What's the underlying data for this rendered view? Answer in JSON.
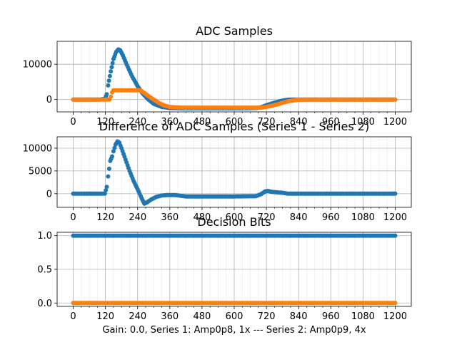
{
  "caption": "Gain: 0.0, Series 1: Amp0p8, 1x --- Series 2: Amp0p9, 4x",
  "chart_data": [
    {
      "type": "scatter",
      "title": "ADC Samples",
      "xlim": [
        -60,
        1260
      ],
      "ylim": [
        -3500,
        16500
      ],
      "xticks": [
        0,
        120,
        240,
        360,
        480,
        600,
        720,
        840,
        960,
        1080,
        1200
      ],
      "yticks": [
        0,
        10000
      ],
      "grid": true,
      "series": [
        {
          "color": "#1f77b4",
          "points": [
            [
              0,
              0
            ],
            [
              100,
              0
            ],
            [
              118,
              200
            ],
            [
              125,
              1500
            ],
            [
              130,
              4000
            ],
            [
              140,
              8000
            ],
            [
              150,
              11500
            ],
            [
              160,
              13500
            ],
            [
              168,
              14200
            ],
            [
              175,
              14000
            ],
            [
              185,
              12500
            ],
            [
              200,
              9800
            ],
            [
              220,
              6500
            ],
            [
              240,
              3800
            ],
            [
              260,
              1600
            ],
            [
              280,
              0
            ],
            [
              300,
              -1200
            ],
            [
              330,
              -2100
            ],
            [
              360,
              -2400
            ],
            [
              400,
              -2500
            ],
            [
              500,
              -2500
            ],
            [
              600,
              -2500
            ],
            [
              680,
              -2450
            ],
            [
              700,
              -2200
            ],
            [
              720,
              -1600
            ],
            [
              750,
              -900
            ],
            [
              780,
              -300
            ],
            [
              800,
              -60
            ],
            [
              820,
              0
            ],
            [
              900,
              0
            ],
            [
              1200,
              0
            ]
          ]
        },
        {
          "color": "#ff7f0e",
          "points": [
            [
              0,
              0
            ],
            [
              135,
              0
            ],
            [
              140,
              800
            ],
            [
              145,
              2000
            ],
            [
              150,
              2600
            ],
            [
              250,
              2600
            ],
            [
              262,
              2000
            ],
            [
              280,
              1000
            ],
            [
              300,
              0
            ],
            [
              320,
              -1000
            ],
            [
              340,
              -1700
            ],
            [
              360,
              -2100
            ],
            [
              400,
              -2300
            ],
            [
              500,
              -2300
            ],
            [
              600,
              -2300
            ],
            [
              700,
              -2300
            ],
            [
              720,
              -2100
            ],
            [
              760,
              -1400
            ],
            [
              800,
              -500
            ],
            [
              840,
              -50
            ],
            [
              900,
              0
            ],
            [
              1200,
              0
            ]
          ]
        }
      ]
    },
    {
      "type": "scatter",
      "title": "Difference of ADC Samples (Series 1 - Series 2)",
      "xlim": [
        -60,
        1260
      ],
      "ylim": [
        -3000,
        12500
      ],
      "xticks": [
        0,
        120,
        240,
        360,
        480,
        600,
        720,
        840,
        960,
        1080,
        1200
      ],
      "yticks": [
        0,
        5000,
        10000
      ],
      "grid": true,
      "series": [
        {
          "color": "#1f77b4",
          "points": [
            [
              0,
              0
            ],
            [
              118,
              0
            ],
            [
              125,
              1500
            ],
            [
              130,
              3800
            ],
            [
              138,
              7200
            ],
            [
              145,
              8200
            ],
            [
              150,
              9300
            ],
            [
              158,
              10800
            ],
            [
              165,
              11500
            ],
            [
              172,
              11200
            ],
            [
              180,
              10000
            ],
            [
              195,
              7500
            ],
            [
              210,
              5000
            ],
            [
              225,
              2800
            ],
            [
              240,
              1000
            ],
            [
              255,
              -1000
            ],
            [
              265,
              -2200
            ],
            [
              275,
              -1900
            ],
            [
              290,
              -1300
            ],
            [
              310,
              -700
            ],
            [
              330,
              -400
            ],
            [
              350,
              -300
            ],
            [
              380,
              -300
            ],
            [
              420,
              -600
            ],
            [
              500,
              -600
            ],
            [
              600,
              -600
            ],
            [
              680,
              -550
            ],
            [
              700,
              -100
            ],
            [
              715,
              500
            ],
            [
              725,
              600
            ],
            [
              740,
              400
            ],
            [
              780,
              200
            ],
            [
              800,
              0
            ],
            [
              1200,
              0
            ]
          ]
        }
      ]
    },
    {
      "type": "scatter",
      "title": "Decision Bits",
      "xlim": [
        -60,
        1260
      ],
      "ylim": [
        -0.05,
        1.05
      ],
      "xticks": [
        0,
        120,
        240,
        360,
        480,
        600,
        720,
        840,
        960,
        1080,
        1200
      ],
      "yticks": [
        0.0,
        0.5,
        1.0
      ],
      "yticklabels": [
        "0.0",
        "0.5",
        "1.0"
      ],
      "grid": true,
      "series": [
        {
          "color": "#1f77b4",
          "points": [
            [
              0,
              1
            ],
            [
              1200,
              1
            ]
          ]
        },
        {
          "color": "#ff7f0e",
          "points": [
            [
              0,
              0
            ],
            [
              1200,
              0
            ]
          ]
        }
      ]
    }
  ]
}
